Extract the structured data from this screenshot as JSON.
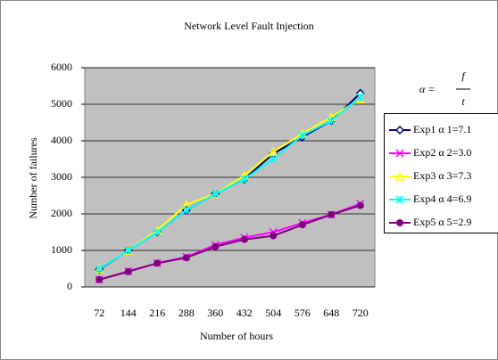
{
  "chart_data": {
    "type": "line",
    "title": "Network Level Fault Injection",
    "x_label": "Number of hours",
    "y_label": "Number of failures",
    "annotation": {
      "lhs": "α =",
      "numerator": "f",
      "denominator": "t"
    },
    "categories": [
      "72",
      "144",
      "216",
      "288",
      "360",
      "432",
      "504",
      "576",
      "648",
      "720"
    ],
    "series": [
      {
        "name": "Exp1  α 1=7.1",
        "color": "#000080",
        "marker": "diamond",
        "values": [
          480,
          1000,
          1500,
          2100,
          2550,
          2950,
          3650,
          4100,
          4550,
          5300
        ]
      },
      {
        "name": "Exp2  α 2=3.0",
        "color": "#ff00ff",
        "marker": "x",
        "values": [
          200,
          430,
          650,
          820,
          1150,
          1350,
          1500,
          1750,
          1980,
          2280
        ]
      },
      {
        "name": "Exp3  α 3=7.3",
        "color": "#ffff00",
        "marker": "triangle",
        "values": [
          500,
          1000,
          1550,
          2250,
          2550,
          3050,
          3700,
          4200,
          4650,
          5150
        ]
      },
      {
        "name": "Exp4  α 4=6.9",
        "color": "#00ffff",
        "marker": "star",
        "values": [
          500,
          1000,
          1500,
          2100,
          2550,
          2950,
          3500,
          4150,
          4550,
          5200
        ]
      },
      {
        "name": "Exp5  α 5=2.9",
        "color": "#800080",
        "marker": "circle",
        "values": [
          200,
          420,
          650,
          800,
          1100,
          1300,
          1400,
          1700,
          1980,
          2230
        ]
      }
    ],
    "ylim": [
      0,
      6000
    ],
    "yticks": [
      0,
      1000,
      2000,
      3000,
      4000,
      5000,
      6000
    ],
    "grid": true,
    "plot_background": "#c0c0c0",
    "legend": "right"
  }
}
